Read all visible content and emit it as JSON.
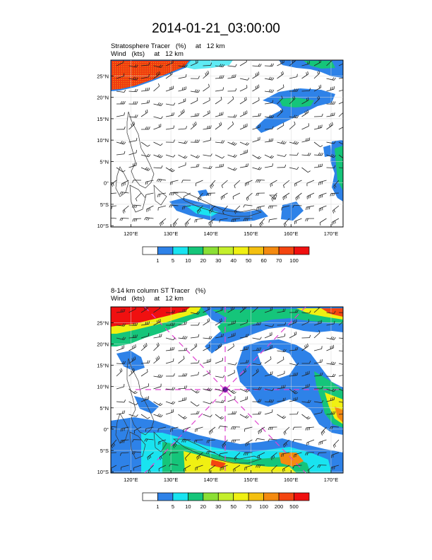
{
  "title": "2014-01-21_03:00:00",
  "panels": [
    {
      "subtitle1": "Stratosphere Tracer   (%)     at   12 km",
      "subtitle2": "Wind   (kts)     at   12 km",
      "lat_ticks": [
        "25°N",
        "20°N",
        "15°N",
        "10°N",
        "5°N",
        "0°",
        "5°S",
        "10°S"
      ],
      "lon_ticks": [
        "120°E",
        "130°E",
        "140°E",
        "150°E",
        "160°E",
        "170°E"
      ],
      "colorbar_labels": [
        "1",
        "5",
        "10",
        "20",
        "30",
        "40",
        "50",
        "60",
        "70",
        "100"
      ],
      "colorbar_colors": [
        "#ffffff",
        "#2e82e8",
        "#19e3f0",
        "#15c57a",
        "#8bdf35",
        "#c4ef2c",
        "#f0f012",
        "#f4c010",
        "#f48a10",
        "#f44510",
        "#f01010"
      ]
    },
    {
      "subtitle1": "8-14 km column ST Tracer   (%)",
      "subtitle2": "Wind   (kts)     at   12 km",
      "lat_ticks": [
        "25°N",
        "20°N",
        "15°N",
        "10°N",
        "5°N",
        "0°",
        "5°S",
        "10°S"
      ],
      "lon_ticks": [
        "120°E",
        "130°E",
        "140°E",
        "150°E",
        "160°E",
        "170°E"
      ],
      "colorbar_labels": [
        "1",
        "5",
        "10",
        "20",
        "30",
        "50",
        "70",
        "100",
        "200",
        "500"
      ],
      "colorbar_colors": [
        "#ffffff",
        "#2e82e8",
        "#19e3f0",
        "#15c57a",
        "#8bdf35",
        "#c4ef2c",
        "#f0f012",
        "#f4c010",
        "#f48a10",
        "#f44510",
        "#f01010"
      ]
    }
  ]
}
